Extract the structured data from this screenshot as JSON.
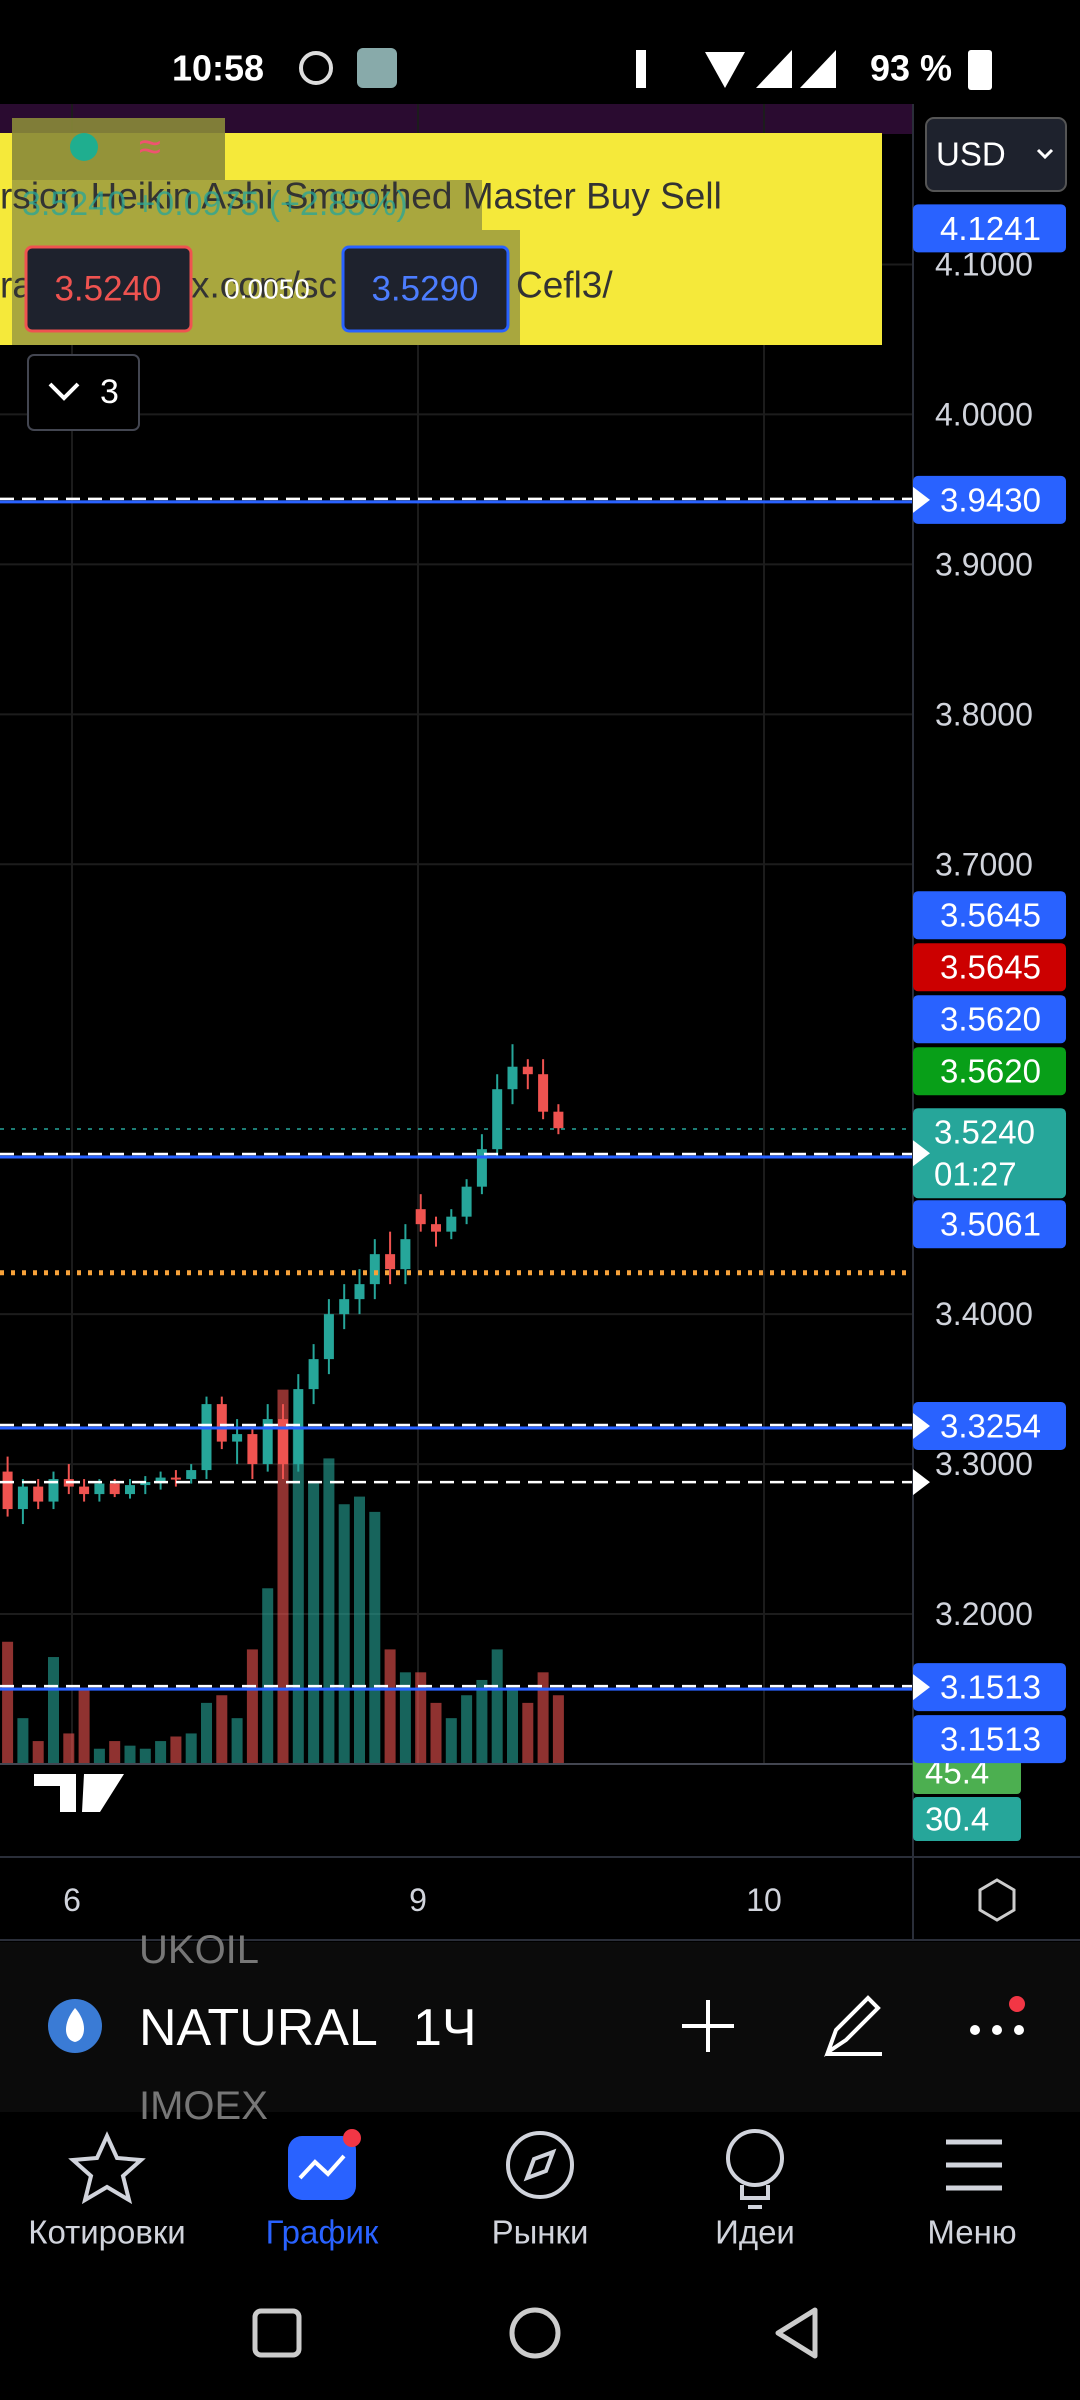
{
  "status_bar": {
    "time": "10:58",
    "battery": "93 %"
  },
  "currency": "USD",
  "legend": {
    "indicator": "rsion Heikin Ashi Smoothed Master Buy Sell",
    "link_parts": [
      "ra",
      "x.com/sc",
      "Cefl3/"
    ],
    "price_change": "3.5240 +0.0975 (+2.85%)",
    "bid": "3.5240",
    "spread": "0.0050",
    "ask": "3.5290",
    "collapse_count": "3"
  },
  "chart_data": {
    "type": "candlestick",
    "x_labels": [
      "6",
      "9",
      "10"
    ],
    "open": [
      3.295,
      3.27,
      3.285,
      3.275,
      3.29,
      3.285,
      3.28,
      3.287,
      3.28,
      3.286,
      3.288,
      3.291,
      3.29,
      3.296,
      3.34,
      3.315,
      3.32,
      3.3,
      3.33,
      3.3,
      3.35,
      3.37,
      3.4,
      3.41,
      3.42,
      3.44,
      3.43,
      3.47,
      3.46,
      3.455,
      3.465,
      3.485,
      3.51,
      3.55,
      3.565,
      3.56,
      3.535
    ],
    "high": [
      3.305,
      3.29,
      3.29,
      3.295,
      3.3,
      3.29,
      3.29,
      3.29,
      3.29,
      3.292,
      3.295,
      3.296,
      3.3,
      3.345,
      3.345,
      3.33,
      3.325,
      3.34,
      3.34,
      3.36,
      3.38,
      3.41,
      3.42,
      3.43,
      3.45,
      3.455,
      3.46,
      3.48,
      3.465,
      3.47,
      3.49,
      3.52,
      3.56,
      3.58,
      3.57,
      3.57,
      3.54
    ],
    "low": [
      3.265,
      3.26,
      3.27,
      3.27,
      3.28,
      3.275,
      3.275,
      3.278,
      3.277,
      3.28,
      3.283,
      3.285,
      3.287,
      3.29,
      3.31,
      3.3,
      3.29,
      3.295,
      3.29,
      3.295,
      3.34,
      3.36,
      3.39,
      3.4,
      3.41,
      3.42,
      3.42,
      3.455,
      3.445,
      3.45,
      3.46,
      3.48,
      3.505,
      3.54,
      3.55,
      3.53,
      3.52
    ],
    "close": [
      3.27,
      3.285,
      3.275,
      3.29,
      3.285,
      3.28,
      3.287,
      3.28,
      3.286,
      3.288,
      3.291,
      3.29,
      3.296,
      3.34,
      3.315,
      3.32,
      3.3,
      3.33,
      3.3,
      3.35,
      3.37,
      3.4,
      3.41,
      3.42,
      3.44,
      3.43,
      3.45,
      3.46,
      3.455,
      3.465,
      3.485,
      3.51,
      3.55,
      3.565,
      3.56,
      3.535,
      3.524
    ],
    "volume": [
      80,
      30,
      15,
      70,
      20,
      50,
      10,
      15,
      12,
      10,
      15,
      18,
      20,
      40,
      45,
      30,
      75,
      115,
      245,
      220,
      185,
      200,
      170,
      175,
      165,
      75,
      60,
      60,
      40,
      30,
      45,
      55,
      75,
      50,
      40,
      60,
      45
    ],
    "vlim": [
      0,
      250
    ],
    "up_color": "#26a69a",
    "down_color": "#ef5350",
    "ylim": [
      3.1,
      4.207
    ],
    "yticks": [
      {
        "value": 3.2,
        "label": "3.2000"
      },
      {
        "value": 3.3,
        "label": "3.3000"
      },
      {
        "value": 3.4,
        "label": "3.4000"
      },
      {
        "value": 3.7,
        "label": "3.7000"
      },
      {
        "value": 3.8,
        "label": "3.8000"
      },
      {
        "value": 3.9,
        "label": "3.9000"
      },
      {
        "value": 4,
        "label": "4.0000"
      },
      {
        "value": 4.1,
        "label": "4.1000"
      }
    ],
    "grid": true,
    "price_lines": [
      {
        "value": 3.943,
        "style": "price",
        "color": "#2962ff"
      },
      {
        "value": 3.5061,
        "style": "price",
        "color": "#2962ff"
      },
      {
        "value": 3.3254,
        "style": "price",
        "color": "#2962ff"
      },
      {
        "value": 3.1513,
        "style": "price",
        "color": "#2962ff"
      },
      {
        "value": 3.288,
        "style": "dashed",
        "color": "#ffffff"
      },
      {
        "value": 3.4276,
        "style": "dotted",
        "color": "#f7a23a"
      },
      {
        "value": 3.5235,
        "style": "dotted",
        "color": "#26a69a"
      }
    ],
    "price_labels": [
      {
        "value": 4.1241,
        "color": "#2962ff"
      },
      {
        "value": 3.943,
        "label": "3.9430",
        "color": "#2962ff",
        "arrow": true
      },
      {
        "value": 3.5645,
        "color": "#2962ff"
      },
      {
        "value": 3.5645,
        "color": "#cc0000"
      },
      {
        "value": 3.562,
        "label": "3.5620",
        "color": "#2962ff"
      },
      {
        "value": 3.562,
        "label": "3.5620",
        "color": "#089f18"
      },
      {
        "value": 3.524,
        "label": "3.5240",
        "timer": "01:27",
        "color": "#26a69a",
        "arrow": true
      },
      {
        "value": 3.5061,
        "color": "#2962ff"
      },
      {
        "value": 3.3254,
        "color": "#2962ff",
        "arrow": true
      },
      {
        "value": 3.1513,
        "color": "#2962ff",
        "arrow": true
      },
      {
        "value": 3.1513,
        "color": "#2962ff"
      }
    ],
    "volume_labels": [
      45.4,
      30.4
    ]
  },
  "symbol_bar": {
    "prev": "UKOIL",
    "symbol": "NATURAL",
    "interval": "1Ч",
    "next": "IMOEX"
  },
  "nav": [
    "Котировки",
    "График",
    "Рынки",
    "Идеи",
    "Меню"
  ]
}
